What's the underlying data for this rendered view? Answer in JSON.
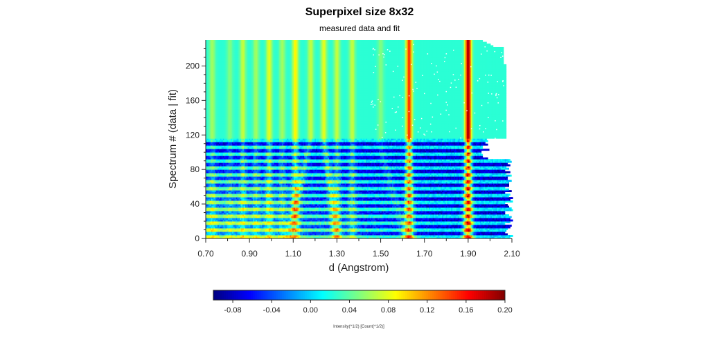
{
  "chart_data": {
    "type": "heatmap",
    "title": "Superpixel size 8x32",
    "subtitle": "measured data and fit",
    "xlabel": "d (Angstrom)",
    "ylabel": "Spectrum # (data | fit)",
    "xlim": [
      0.7,
      2.1
    ],
    "ylim": [
      0,
      230
    ],
    "x_ticks": [
      "0.70",
      "0.90",
      "1.10",
      "1.30",
      "1.50",
      "1.70",
      "1.90",
      "2.10"
    ],
    "y_ticks": [
      "0",
      "40",
      "80",
      "120",
      "160",
      "200"
    ],
    "split_spectrum": 115,
    "peaks_fit": [
      {
        "d": 0.73,
        "intensity": 0.06
      },
      {
        "d": 0.81,
        "intensity": 0.05
      },
      {
        "d": 0.87,
        "intensity": 0.07
      },
      {
        "d": 0.93,
        "intensity": 0.06
      },
      {
        "d": 0.99,
        "intensity": 0.08
      },
      {
        "d": 1.05,
        "intensity": 0.06
      },
      {
        "d": 1.11,
        "intensity": 0.09
      },
      {
        "d": 1.18,
        "intensity": 0.07
      },
      {
        "d": 1.24,
        "intensity": 0.08
      },
      {
        "d": 1.3,
        "intensity": 0.07
      },
      {
        "d": 1.37,
        "intensity": 0.07
      },
      {
        "d": 1.5,
        "intensity": 0.05
      },
      {
        "d": 1.63,
        "intensity": 0.15
      },
      {
        "d": 1.9,
        "intensity": 0.19
      }
    ],
    "colorbar": {
      "min": -0.1,
      "max": 0.2,
      "ticks": [
        "-0.08",
        "-0.04",
        "0.00",
        "0.04",
        "0.08",
        "0.12",
        "0.16",
        "0.20"
      ],
      "label": "Intensity(^1/2) [Count(^1/2)]",
      "colormap": "jet"
    }
  }
}
